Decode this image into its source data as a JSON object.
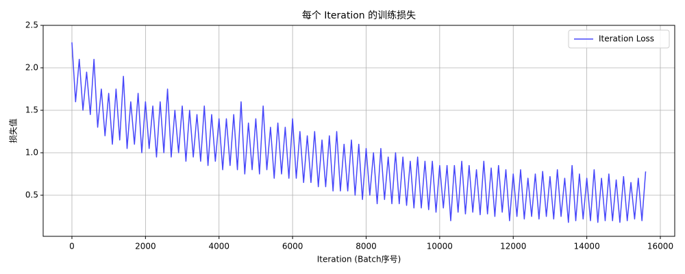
{
  "chart_data": {
    "type": "line",
    "title": "每个 Iteration 的训练损失",
    "xlabel": "Iteration (Batch序号)",
    "ylabel": "损失值",
    "x": [
      0,
      100,
      200,
      300,
      400,
      500,
      600,
      700,
      800,
      900,
      1000,
      1100,
      1200,
      1300,
      1400,
      1500,
      1600,
      1700,
      1800,
      1900,
      2000,
      2100,
      2200,
      2300,
      2400,
      2500,
      2600,
      2700,
      2800,
      2900,
      3000,
      3100,
      3200,
      3300,
      3400,
      3500,
      3600,
      3700,
      3800,
      3900,
      4000,
      4100,
      4200,
      4300,
      4400,
      4500,
      4600,
      4700,
      4800,
      4900,
      5000,
      5100,
      5200,
      5300,
      5400,
      5500,
      5600,
      5700,
      5800,
      5900,
      6000,
      6100,
      6200,
      6300,
      6400,
      6500,
      6600,
      6700,
      6800,
      6900,
      7000,
      7100,
      7200,
      7300,
      7400,
      7500,
      7600,
      7700,
      7800,
      7900,
      8000,
      8100,
      8200,
      8300,
      8400,
      8500,
      8600,
      8700,
      8800,
      8900,
      9000,
      9100,
      9200,
      9300,
      9400,
      9500,
      9600,
      9700,
      9800,
      9900,
      10000,
      10100,
      10200,
      10300,
      10400,
      10500,
      10600,
      10700,
      10800,
      10900,
      11000,
      11100,
      11200,
      11300,
      11400,
      11500,
      11600,
      11700,
      11800,
      11900,
      12000,
      12100,
      12200,
      12300,
      12400,
      12500,
      12600,
      12700,
      12800,
      12900,
      13000,
      13100,
      13200,
      13300,
      13400,
      13500,
      13600,
      13700,
      13800,
      13900,
      14000,
      14100,
      14200,
      14300,
      14400,
      14500,
      14600,
      14700,
      14800,
      14900,
      15000,
      15100,
      15200,
      15300,
      15400,
      15500,
      15600
    ],
    "series": [
      {
        "name": "Iteration Loss",
        "color": "#4646fa",
        "values": [
          2.3,
          1.6,
          2.1,
          1.5,
          1.95,
          1.45,
          2.1,
          1.3,
          1.75,
          1.2,
          1.7,
          1.1,
          1.75,
          1.15,
          1.9,
          1.05,
          1.6,
          1.1,
          1.7,
          1.0,
          1.6,
          1.05,
          1.55,
          0.95,
          1.6,
          1.0,
          1.75,
          0.95,
          1.5,
          1.0,
          1.55,
          0.9,
          1.5,
          0.95,
          1.45,
          0.9,
          1.55,
          0.85,
          1.45,
          0.9,
          1.4,
          0.8,
          1.4,
          0.85,
          1.45,
          0.8,
          1.6,
          0.75,
          1.35,
          0.8,
          1.4,
          0.75,
          1.55,
          0.8,
          1.3,
          0.7,
          1.35,
          0.75,
          1.3,
          0.7,
          1.4,
          0.7,
          1.25,
          0.65,
          1.2,
          0.65,
          1.25,
          0.6,
          1.15,
          0.6,
          1.2,
          0.55,
          1.25,
          0.55,
          1.1,
          0.55,
          1.15,
          0.5,
          1.1,
          0.45,
          1.05,
          0.5,
          1.0,
          0.4,
          1.05,
          0.45,
          0.95,
          0.4,
          1.0,
          0.4,
          0.95,
          0.38,
          0.9,
          0.35,
          0.95,
          0.35,
          0.9,
          0.33,
          0.9,
          0.3,
          0.85,
          0.35,
          0.85,
          0.2,
          0.85,
          0.3,
          0.9,
          0.28,
          0.85,
          0.3,
          0.8,
          0.27,
          0.9,
          0.28,
          0.82,
          0.25,
          0.85,
          0.3,
          0.8,
          0.2,
          0.75,
          0.25,
          0.8,
          0.22,
          0.7,
          0.25,
          0.75,
          0.22,
          0.78,
          0.25,
          0.72,
          0.22,
          0.8,
          0.25,
          0.7,
          0.18,
          0.85,
          0.2,
          0.75,
          0.22,
          0.7,
          0.2,
          0.8,
          0.18,
          0.7,
          0.2,
          0.75,
          0.2,
          0.68,
          0.18,
          0.72,
          0.2,
          0.65,
          0.22,
          0.7,
          0.2,
          0.78
        ]
      }
    ],
    "xlim": [
      -782,
      16391
    ],
    "xticks": [
      0,
      2000,
      4000,
      6000,
      8000,
      10000,
      12000,
      14000,
      16000
    ],
    "ylim": [
      0.016,
      2.5
    ],
    "yticks": [
      0.5,
      {
        "value": 1.0,
        "label": "1.0"
      },
      1.5,
      {
        "value": 2.0,
        "label": "2.0"
      },
      2.5
    ],
    "grid": true,
    "legend": "upper right"
  }
}
